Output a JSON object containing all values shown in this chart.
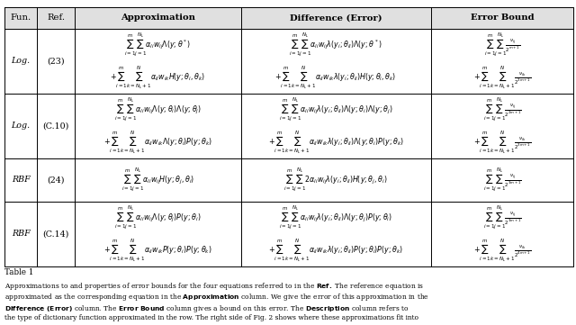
{
  "col_headers": [
    "Fun.",
    "Ref.",
    "Approximation",
    "Difference (Error)",
    "Error Bound"
  ],
  "rows": [
    {
      "fun": "Log.",
      "ref": "(23)",
      "approx_line1": "$\\sum_{i=1}^{m}\\sum_{j=1}^{N_L} \\alpha_{li} w_{ij} \\Lambda(y;\\theta^*)$",
      "approx_line2": "$+\\sum_{i=1}^{m}\\sum_{k=N_L+1}^{N} \\alpha_{li} w_{ik} H(y;\\theta_i,\\theta_k)$",
      "diff_line1": "$\\sum_{i=1}^{m}\\sum_{j=1}^{N_L} \\alpha_{li} w_{ij} \\lambda(y_i;\\theta_{li}) \\Lambda(y;\\theta^*)$",
      "diff_line2": "$+\\sum_{i=1}^{m}\\sum_{k=N_L+1}^{N} \\alpha_{li} w_{ik} \\lambda(y_i;\\theta_{li}) H(y;\\theta_i,\\theta_k)$",
      "bound_line1": "$\\sum_{i=1}^{m}\\sum_{j=1}^{N_L} \\frac{\\nu_{ij}}{2^{m+1}}$",
      "bound_line2": "$+\\sum_{i=1}^{m}\\sum_{k=N_L+1}^{N} \\frac{\\nu_{ik}}{2^{3m+1}}$",
      "two_lines": true
    },
    {
      "fun": "Log.",
      "ref": "(C.10)",
      "approx_line1": "$\\sum_{i=1}^{m}\\sum_{j=1}^{N_L} \\alpha_{li} w_{ij} \\Lambda(y;\\theta_i)\\Lambda(y;\\theta_j)$",
      "approx_line2": "$+\\sum_{i=1}^{m}\\sum_{k=N_L+1}^{N} \\alpha_{li} w_{ik} \\Lambda(y;\\theta_i) P(y;\\theta_k)$",
      "diff_line1": "$\\sum_{i=1}^{m}\\sum_{j=1}^{N_L} \\alpha_{li} w_{ij} \\lambda(y_i;\\theta_{li}) \\Lambda(y;\\theta_i)\\Lambda(y;\\theta_j)$",
      "diff_line2": "$+\\sum_{i=1}^{m}\\sum_{k=N_L+1}^{N} \\alpha_{li} w_{ik} \\lambda(y_i;\\theta_{li}) \\Lambda(y;\\theta_i) P(y;\\theta_k)$",
      "bound_line1": "$\\sum_{i=1}^{m}\\sum_{j=1}^{N_L} \\frac{\\nu_{ij}}{2^{2m+1}}$",
      "bound_line2": "$+\\sum_{i=1}^{m}\\sum_{k=N_L+1}^{N} \\frac{\\nu_{ik}}{2^{3m+1}}$",
      "two_lines": true
    },
    {
      "fun": "RBF",
      "ref": "(24)",
      "approx_line1": "$\\sum_{i=1}^{m}\\sum_{j=1}^{N_L} \\alpha_{li} w_{ij} H(y;\\theta_j,\\theta_i)$",
      "approx_line2": "",
      "diff_line1": "$\\sum_{i=1}^{m}\\sum_{j=1}^{N_L} 2\\alpha_{li} w_{ij} \\lambda(y_i;\\theta_{li}) H(y;\\theta_j,\\theta_i)$",
      "diff_line2": "",
      "bound_line1": "$\\sum_{i=1}^{m}\\sum_{j=1}^{N_L} \\frac{\\nu_{ij}}{2^{3m+1}}$",
      "bound_line2": "",
      "two_lines": false
    },
    {
      "fun": "RBF",
      "ref": "(C.14)",
      "approx_line1": "$\\sum_{i=1}^{m}\\sum_{j=1}^{N_L} \\alpha_{li} w_{ij} \\Lambda(y;\\theta_j) P(y;\\theta_i)$",
      "approx_line2": "$+\\sum_{i=1}^{m}\\sum_{k=N_L+1}^{N} \\alpha_{li} w_{ik} P(y;\\theta_i) P(y;\\theta_k)$",
      "diff_line1": "$\\sum_{i=1}^{m}\\sum_{j=1}^{N_L} \\alpha_{li} w_{ij} \\lambda(y_i;\\theta_{li}) \\Lambda(y;\\theta_j) P(y;\\theta_i)$",
      "diff_line2": "$+\\sum_{i=1}^{m}\\sum_{k=N_L+1}^{N} \\alpha_{li} w_{ik} \\lambda(y_i;\\theta_{li}) P(y;\\theta_i) P(y;\\theta_k)$",
      "bound_line1": "$\\sum_{i=1}^{m}\\sum_{j=1}^{N_L} \\frac{\\nu_{ij}}{2^{3m+1}}$",
      "bound_line2": "$+\\sum_{i=1}^{m}\\sum_{k=N_L+1}^{N} \\frac{\\nu_{ik}}{2^{4m+1}}$",
      "two_lines": true
    }
  ],
  "caption_lines": [
    "Approximations to and properties of error bounds for the four equations referred to in the \\textbf{Ref.}. The reference equation is",
    "approximated as the corresponding equation in the \\textbf{Approximation} column. We give the error of this approximation in the",
    "\\textbf{Difference (Error)} column. The \\textbf{Error Bound} column gives a bound on this error. The \\textbf{Description} column refers to",
    "the type of dictionary function approximated in the row. The right side of Fig. 2 shows where these approximations fit into"
  ],
  "bg_color": "#ffffff",
  "line_color": "#000000"
}
